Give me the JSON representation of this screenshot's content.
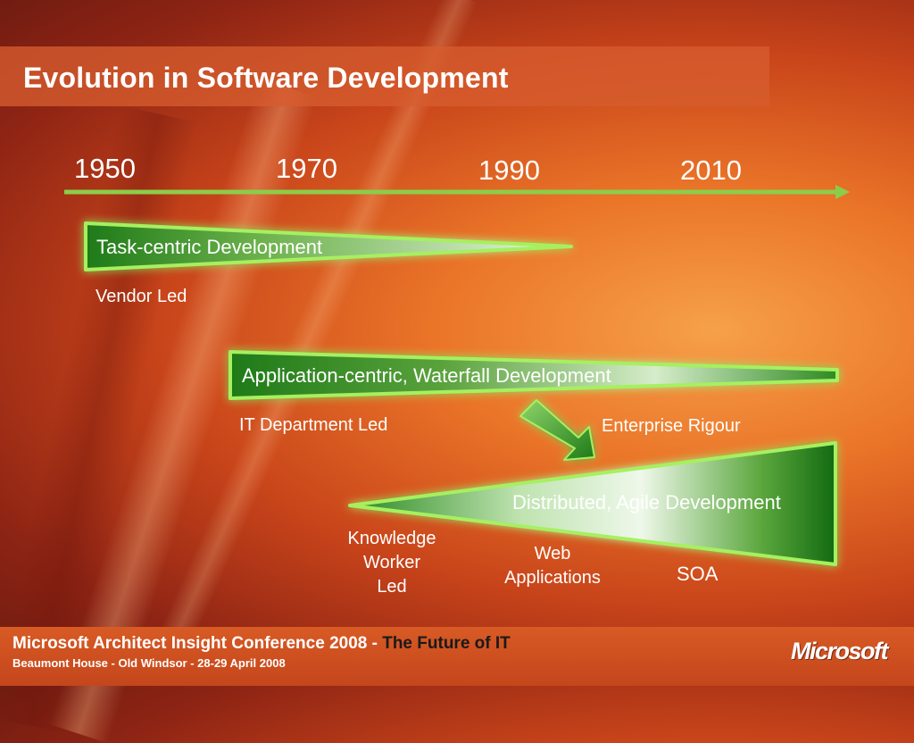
{
  "title": "Evolution in Software Development",
  "timeline": {
    "years": [
      "1950",
      "1970",
      "1990",
      "2010"
    ]
  },
  "wedges": {
    "task": {
      "label": "Task-centric Development",
      "led_by": "Vendor Led"
    },
    "application": {
      "label": "Application-centric, Waterfall Development",
      "led_by": "IT Department Led"
    },
    "distributed": {
      "label": "Distributed, Agile Development",
      "led_by": "Knowledge Worker Led",
      "led_by_lines": [
        "Knowledge",
        "Worker",
        "Led"
      ],
      "web_lines": [
        "Web",
        "Applications"
      ],
      "soa": "SOA"
    },
    "transition": "Enterprise Rigour"
  },
  "footer": {
    "conference": "Microsoft Architect Insight Conference 2008 - ",
    "tagline": "The Future of IT",
    "details": "Beaumont House - Old Windsor - 28-29 April 2008",
    "logo": "Microsoft"
  },
  "colors": {
    "wedge_dark": "#1f7a1a",
    "wedge_glow": "#8be04a",
    "timeline": "#8bcd4a"
  }
}
